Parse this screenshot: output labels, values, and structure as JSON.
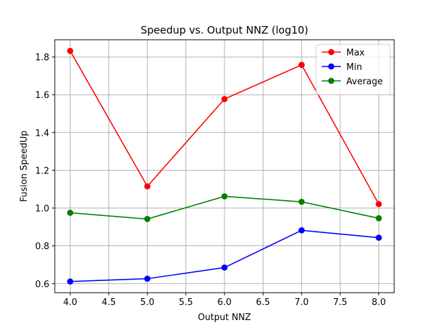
{
  "chart_data": {
    "type": "line",
    "title": "Speedup vs. Output NNZ (log10)",
    "xlabel": "Output NNZ",
    "ylabel": "Fusion SpeedUp",
    "x": [
      4.0,
      5.0,
      6.0,
      7.0,
      8.0
    ],
    "xlim": [
      3.8,
      8.2
    ],
    "ylim": [
      0.552,
      1.891
    ],
    "xticks": [
      4.0,
      4.5,
      5.0,
      5.5,
      6.0,
      6.5,
      7.0,
      7.5,
      8.0
    ],
    "xtick_labels": [
      "4.0",
      "4.5",
      "5.0",
      "5.5",
      "6.0",
      "6.5",
      "7.0",
      "7.5",
      "8.0"
    ],
    "yticks": [
      0.6,
      0.8,
      1.0,
      1.2,
      1.4,
      1.6,
      1.8
    ],
    "ytick_labels": [
      "0.6",
      "0.8",
      "1.0",
      "1.2",
      "1.4",
      "1.6",
      "1.8"
    ],
    "grid": true,
    "legend_position": "top-right",
    "series": [
      {
        "name": "Max",
        "color": "#ff0000",
        "values": [
          1.832,
          1.115,
          1.577,
          1.758,
          1.021
        ]
      },
      {
        "name": "Min",
        "color": "#0000ff",
        "values": [
          0.611,
          0.626,
          0.685,
          0.882,
          0.843
        ]
      },
      {
        "name": "Average",
        "color": "#008000",
        "values": [
          0.975,
          0.942,
          1.062,
          1.033,
          0.946
        ]
      }
    ]
  }
}
